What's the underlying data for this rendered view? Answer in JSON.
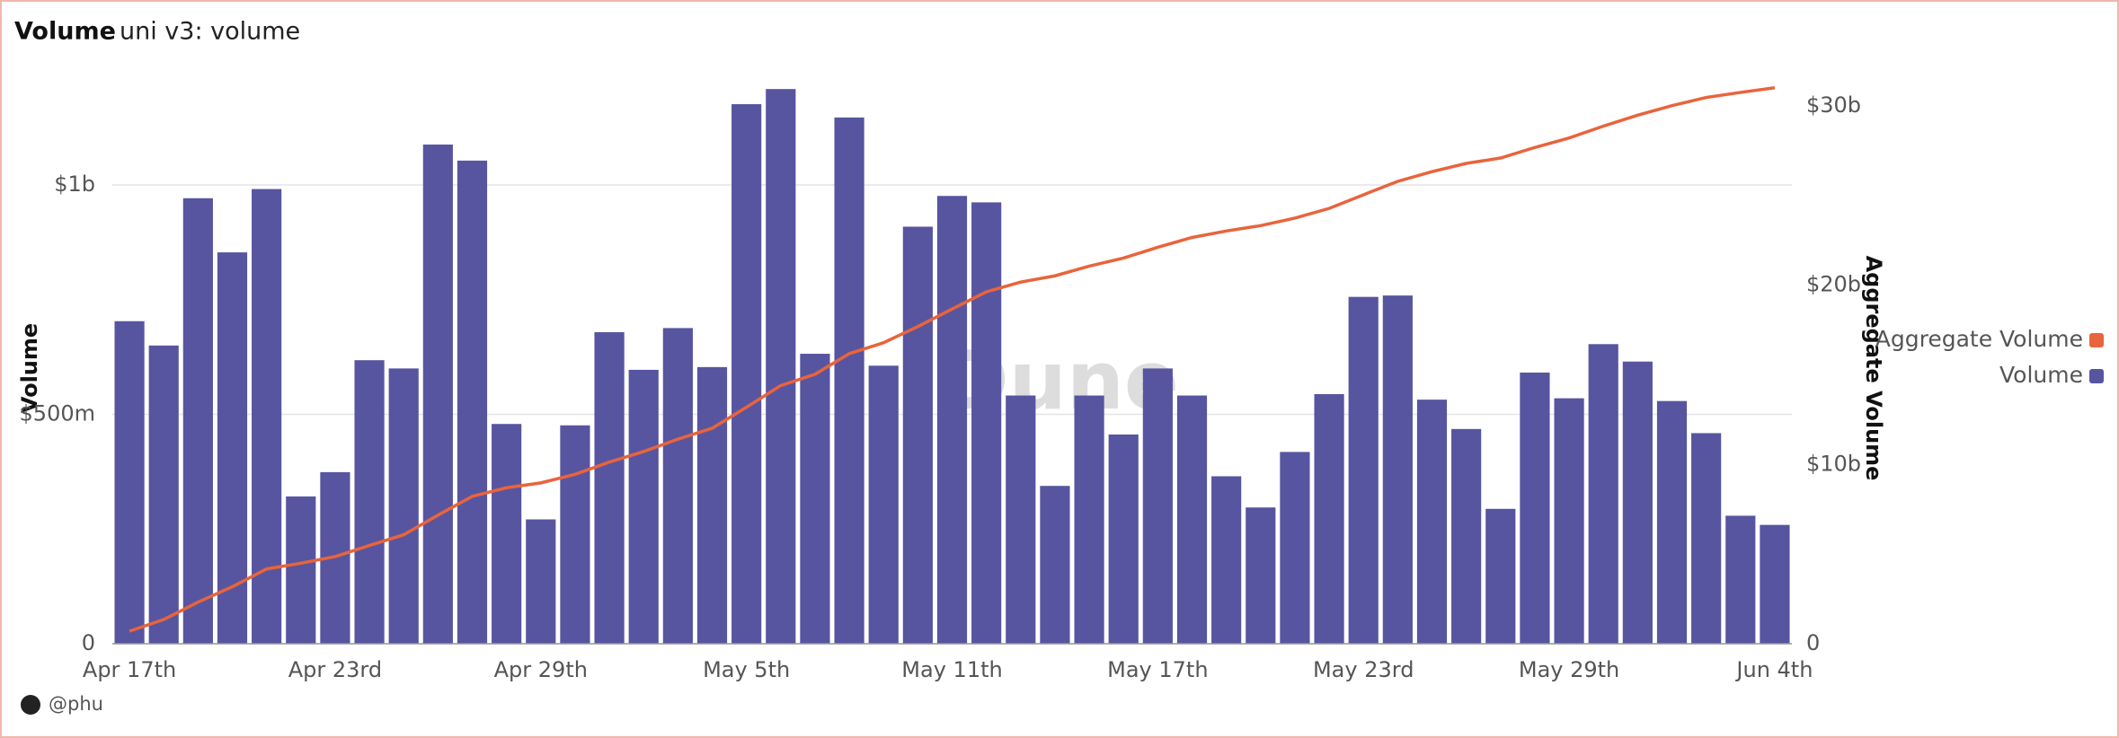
{
  "chart_data": {
    "type": "bar_line",
    "title": "Volume",
    "subtitle": "uni v3: volume",
    "y_label": "Volume",
    "y2_label": "Aggregate Volume",
    "watermark": "Dune",
    "author": "@phu",
    "categories": [
      "Apr 17th",
      null,
      null,
      null,
      null,
      null,
      "Apr 23rd",
      null,
      null,
      null,
      null,
      null,
      "Apr 29th",
      null,
      null,
      null,
      null,
      null,
      "May 5th",
      null,
      null,
      null,
      null,
      null,
      "May 11th",
      null,
      null,
      null,
      null,
      null,
      "May 17th",
      null,
      null,
      null,
      null,
      null,
      "May 23rd",
      null,
      null,
      null,
      null,
      null,
      "May 29th",
      null,
      null,
      null,
      null,
      null,
      "Jun 4th"
    ],
    "series": [
      {
        "name": "Volume",
        "color": "#5755a0",
        "type": "bar",
        "values": [
          703,
          650,
          971,
          853,
          991,
          321,
          374,
          618,
          600,
          1088,
          1053,
          479,
          271,
          476,
          679,
          597,
          688,
          603,
          1176,
          1209,
          632,
          1147,
          606,
          909,
          976,
          962,
          541,
          344,
          541,
          456,
          600,
          541,
          365,
          297,
          418,
          544,
          756,
          759,
          532,
          468,
          294,
          591,
          535,
          653,
          615,
          529,
          459,
          279,
          259
        ]
      },
      {
        "name": "Aggregate Volume",
        "color": "#e8643c",
        "type": "line",
        "axis": "y2",
        "values": [
          0.7,
          1.35,
          2.32,
          3.18,
          4.17,
          4.49,
          4.86,
          5.48,
          6.08,
          7.17,
          8.22,
          8.7,
          8.97,
          9.45,
          10.13,
          10.72,
          11.41,
          12.02,
          13.19,
          14.4,
          15.03,
          16.18,
          16.79,
          17.69,
          18.67,
          19.63,
          20.17,
          20.52,
          21.06,
          21.51,
          22.11,
          22.66,
          23.02,
          23.32,
          23.74,
          24.28,
          25.04,
          25.79,
          26.33,
          26.79,
          27.09,
          27.68,
          28.21,
          28.87,
          29.48,
          30.01,
          30.47,
          30.75,
          31.01
        ]
      }
    ],
    "ylim": [
      0,
      1270
    ],
    "yticks": [
      0,
      {
        "value": 500,
        "label": "$500m"
      },
      {
        "value": 1000,
        "label": "$1b"
      }
    ],
    "y2lim": [
      0,
      32.5
    ],
    "y2ticks": [
      0,
      {
        "value": 10,
        "label": "$10b"
      },
      {
        "value": 20,
        "label": "$20b"
      },
      {
        "value": 30,
        "label": "$30b"
      }
    ],
    "grid": true,
    "legend": "right"
  }
}
